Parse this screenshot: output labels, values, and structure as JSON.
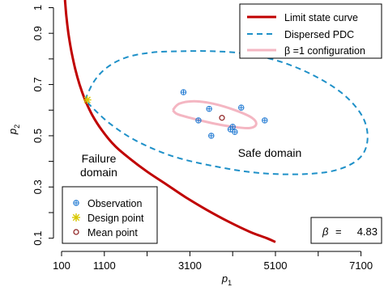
{
  "chart_data": {
    "type": "scatter",
    "xlabel": "p",
    "xlabel_sub": "1",
    "ylabel": "p",
    "ylabel_sub": "2",
    "xlim": [
      100,
      7600
    ],
    "ylim": [
      0.08,
      1.03
    ],
    "x_ticks": [
      100,
      1100,
      3100,
      5100,
      7100
    ],
    "x_tick_labels": [
      "100",
      "1100",
      "3100",
      "5100",
      "7100"
    ],
    "x_minor_ticks": [
      2100,
      4100,
      6100
    ],
    "y_ticks": [
      0.1,
      0.3,
      0.5,
      0.7,
      0.9,
      1.0
    ],
    "y_tick_labels": [
      "0.1",
      "0.3",
      "0.5",
      "0.7",
      "0.9",
      "1"
    ],
    "y_minor_ticks": [
      0.2,
      0.4,
      0.6,
      0.8
    ],
    "limit_state_curve": {
      "name": "Limit state curve",
      "color": "#c00000",
      "x": [
        180,
        210,
        260,
        330,
        420,
        520,
        650,
        820,
        1050,
        1350,
        1700,
        2100,
        2550,
        3000,
        3500,
        4000,
        4500,
        4900,
        5100
      ],
      "y": [
        1.03,
        0.97,
        0.9,
        0.83,
        0.76,
        0.7,
        0.64,
        0.58,
        0.52,
        0.46,
        0.41,
        0.36,
        0.31,
        0.26,
        0.21,
        0.165,
        0.125,
        0.1,
        0.085
      ]
    },
    "dispersed_pdc": {
      "name": "Dispersed PDC",
      "color": "#1e90c8",
      "center": [
        3950,
        0.565
      ],
      "x": [
        650,
        850,
        1150,
        1600,
        2200,
        2900,
        3650,
        4400,
        5200,
        6000,
        6700,
        7150,
        7250,
        7050,
        6500,
        5700,
        4700,
        3700,
        2700,
        1850,
        1250,
        850,
        650
      ],
      "y": [
        0.64,
        0.71,
        0.765,
        0.805,
        0.825,
        0.83,
        0.83,
        0.82,
        0.79,
        0.735,
        0.66,
        0.57,
        0.48,
        0.41,
        0.365,
        0.35,
        0.355,
        0.38,
        0.42,
        0.48,
        0.545,
        0.605,
        0.64
      ]
    },
    "beta1_configuration": {
      "name": "β =1 configuration",
      "color": "#f4b6c2",
      "x": [
        2700,
        2850,
        3200,
        3650,
        4150,
        4550,
        4650,
        4500,
        4100,
        3600,
        3100,
        2800,
        2700
      ],
      "y": [
        0.6,
        0.625,
        0.635,
        0.625,
        0.6,
        0.57,
        0.545,
        0.53,
        0.535,
        0.55,
        0.57,
        0.585,
        0.6
      ]
    },
    "observations": {
      "name": "Observation",
      "color": "#1e78d2",
      "x": [
        2950,
        3300,
        3550,
        4050,
        4150,
        4100,
        4300,
        4850,
        3600
      ],
      "y": [
        0.67,
        0.56,
        0.605,
        0.525,
        0.515,
        0.535,
        0.61,
        0.56,
        0.5
      ]
    },
    "design_point": {
      "name": "Design point",
      "color": "#d8c800",
      "x": 700,
      "y": 0.64
    },
    "mean_point": {
      "name": "Mean point",
      "color": "#8b1a1a",
      "x": 3850,
      "y": 0.57
    },
    "legend": {
      "position": "top-right",
      "items": [
        "Limit state curve",
        "Dispersed PDC",
        "β =1 configuration"
      ]
    },
    "legend2": {
      "position": "bottom-left",
      "items": [
        "Observation",
        "Design point",
        "Mean point"
      ]
    },
    "annotations": {
      "safe_domain": "Safe domain",
      "failure_domain_line1": "Failure",
      "failure_domain_line2": "domain",
      "beta_label": "β",
      "beta_eq": "=",
      "beta_value": "4.83"
    }
  }
}
